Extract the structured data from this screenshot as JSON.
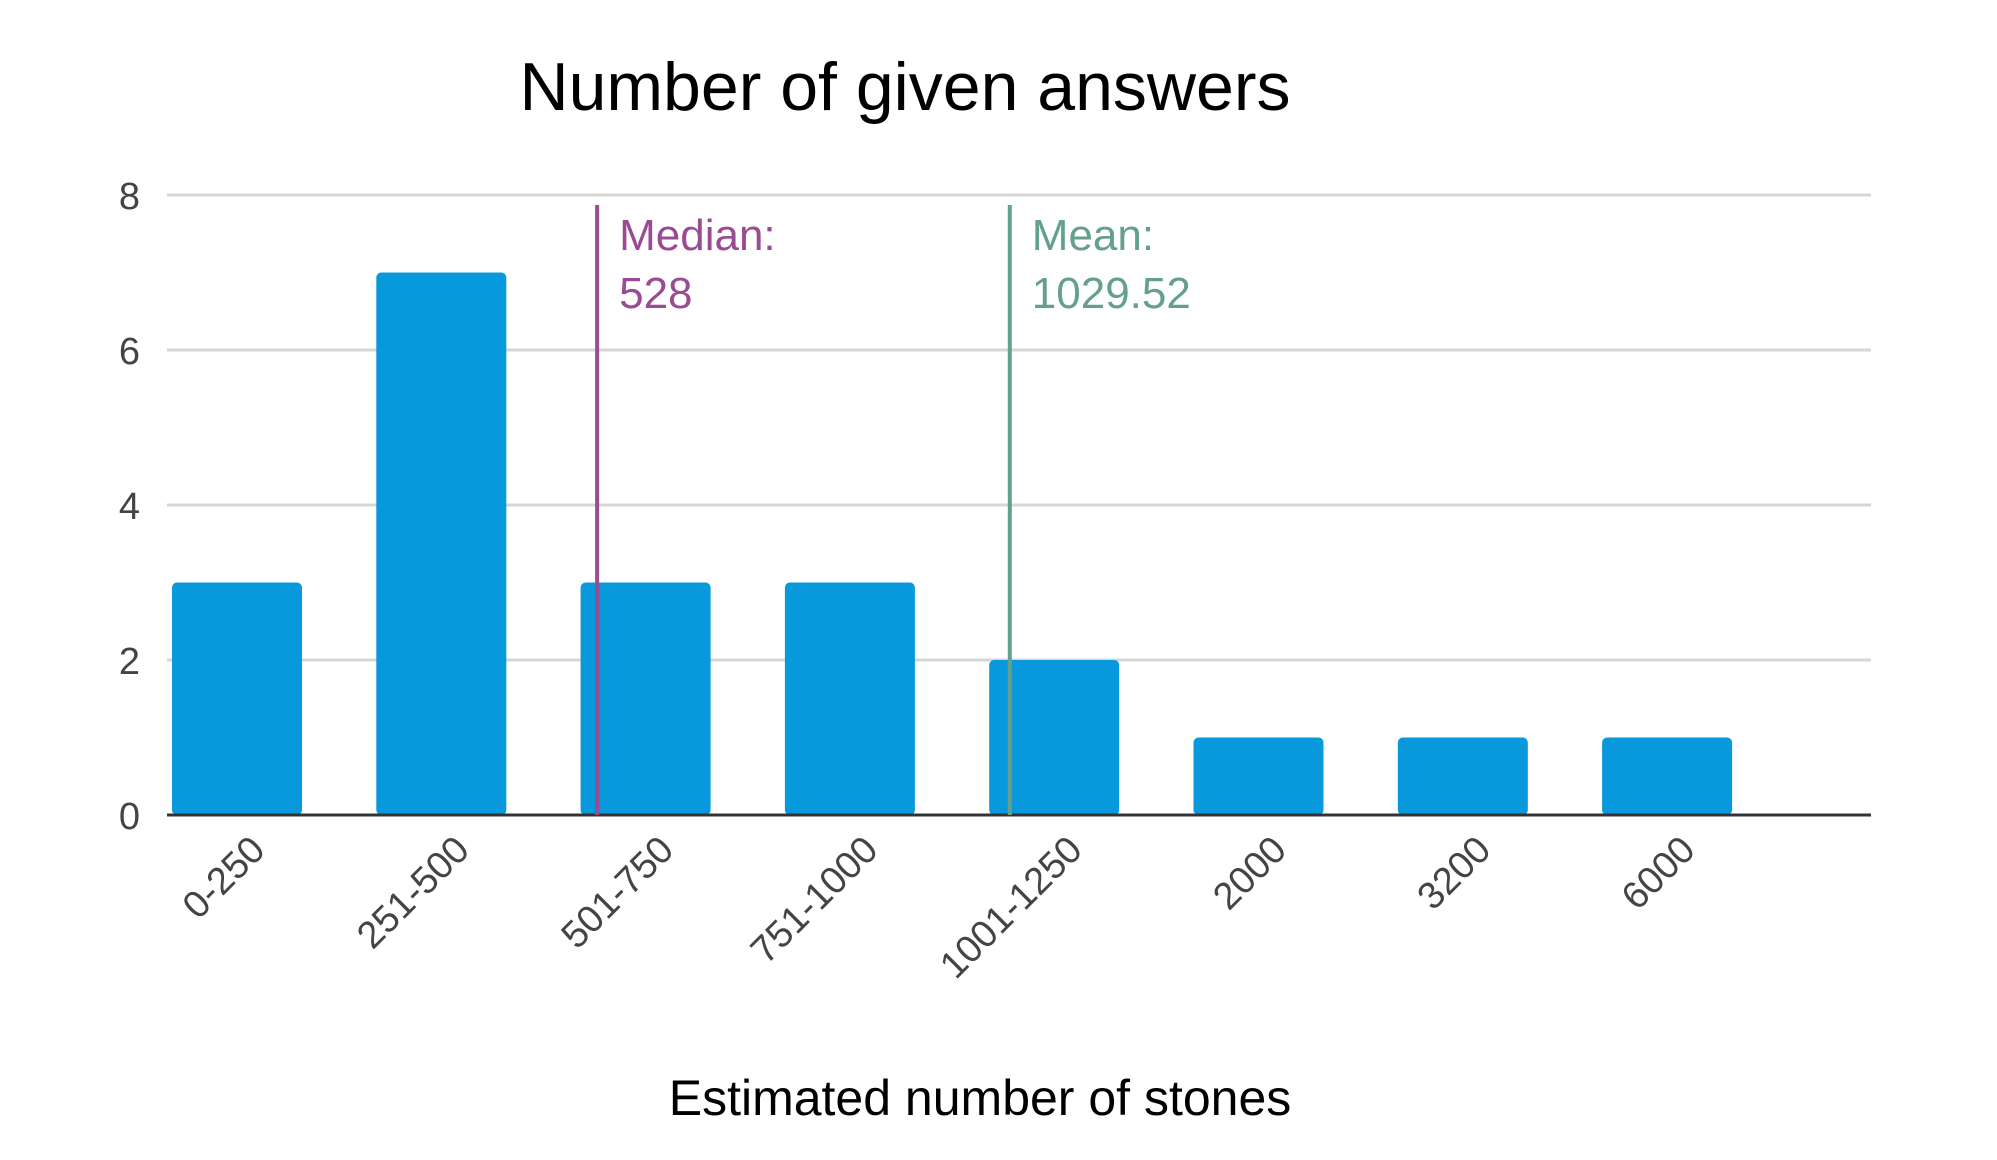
{
  "chart_data": {
    "type": "bar",
    "title": "Number of given answers",
    "xlabel": "Estimated number of stones",
    "ylabel": "",
    "categories": [
      "0-250",
      "251-500",
      "501-750",
      "751-1000",
      "1001-1250",
      "2000",
      "3200",
      "6000"
    ],
    "values": [
      3,
      7,
      3,
      3,
      2,
      1,
      1,
      1
    ],
    "ylim": [
      0,
      8
    ],
    "yticks": [
      0,
      2,
      4,
      6,
      8
    ],
    "grid": true,
    "bar_color": "#0898dc",
    "annotations": [
      {
        "name": "median",
        "label": "Median:",
        "value_text": "528",
        "position_category_index": 2.12,
        "color": "#9b4a94"
      },
      {
        "name": "mean",
        "label": "Mean:",
        "value_text": "1029.52",
        "position_category_index": 4.14,
        "color": "#64a08a"
      }
    ]
  }
}
